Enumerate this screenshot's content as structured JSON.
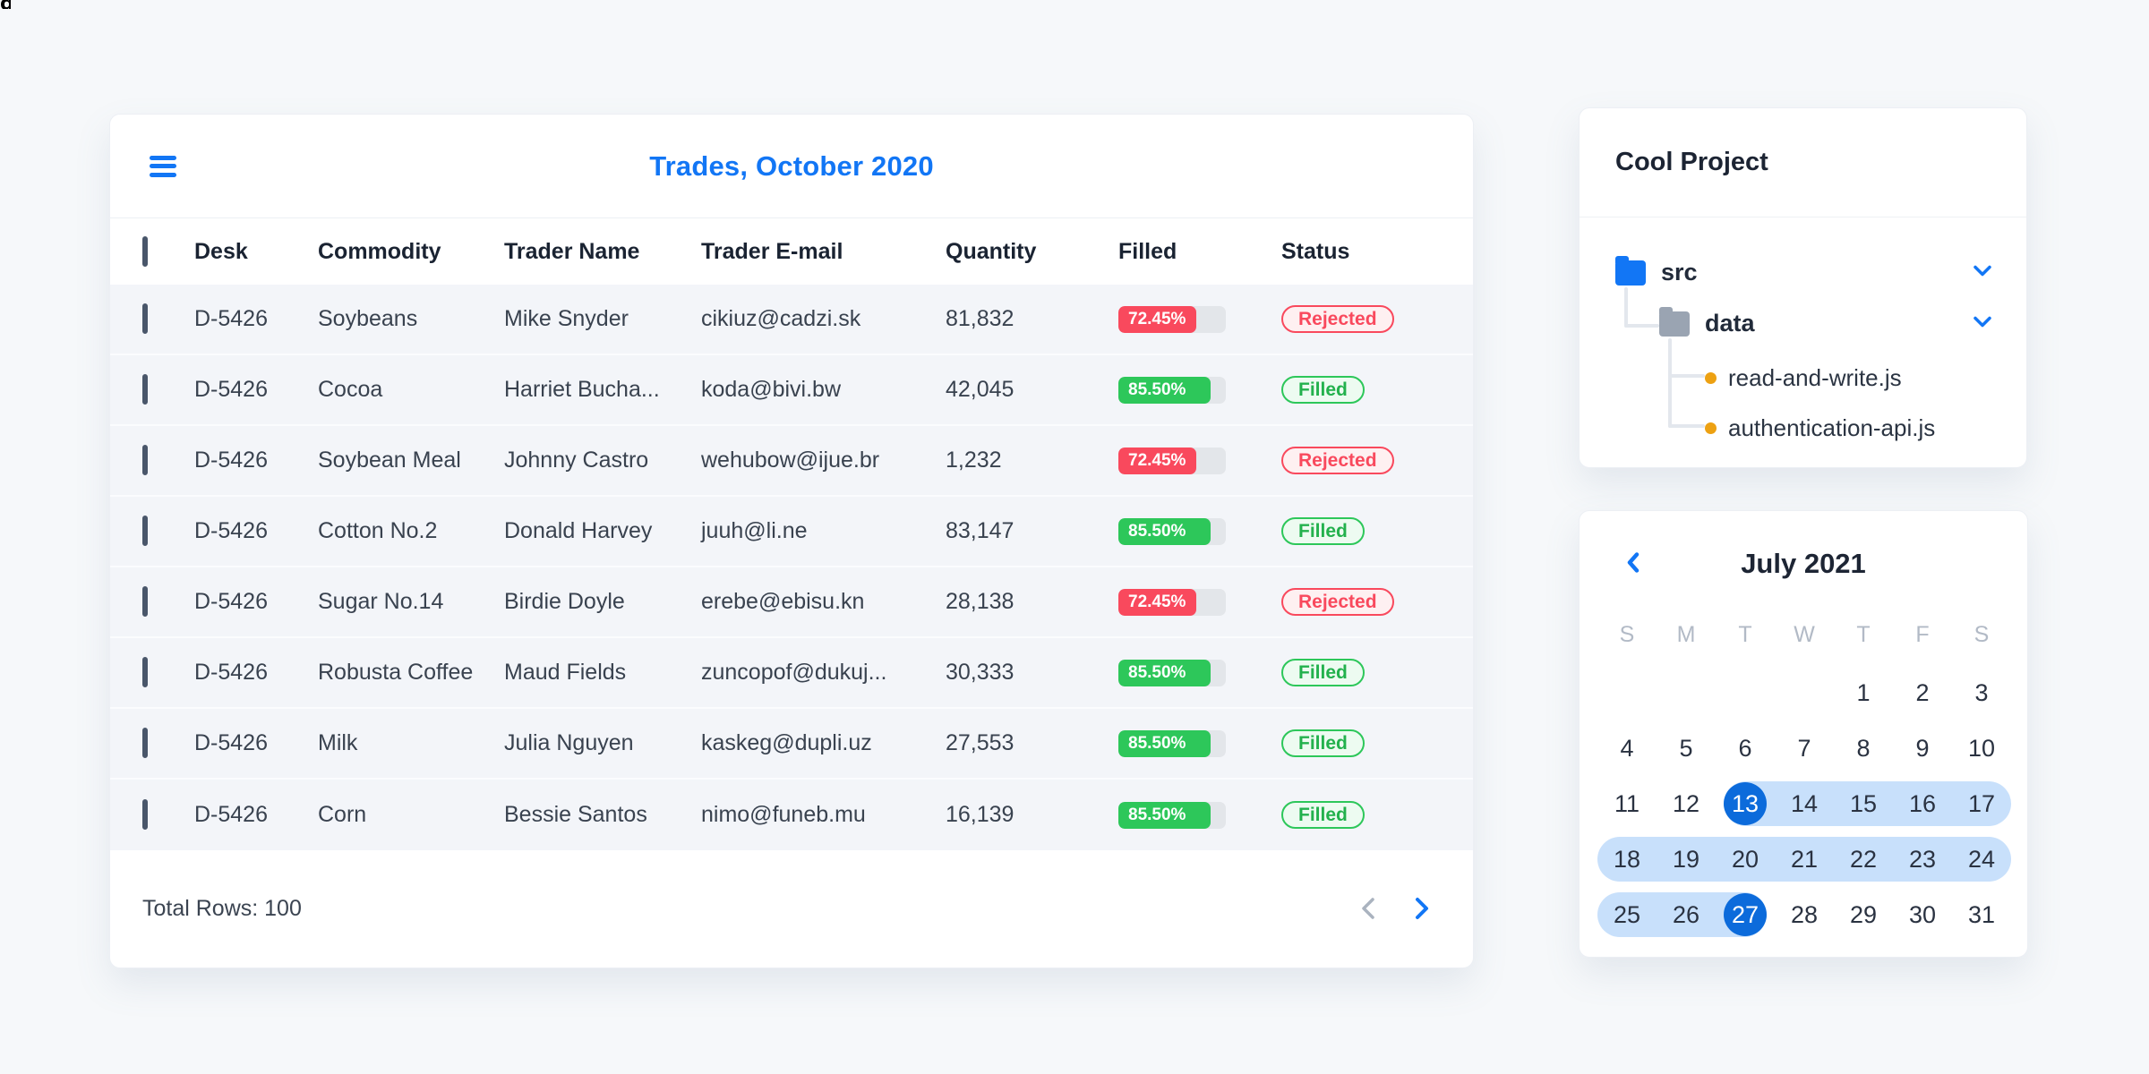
{
  "page": {
    "corner_glyph": "g"
  },
  "trades": {
    "title": "Trades, October 2020",
    "columns": [
      "Desk",
      "Commodity",
      "Trader Name",
      "Trader E-mail",
      "Quantity",
      "Filled",
      "Status"
    ],
    "rows": [
      {
        "desk": "D-5426",
        "commodity": "Soybeans",
        "trader": "Mike Snyder",
        "email": "cikiuz@cadzi.sk",
        "quantity": "81,832",
        "filled_label": "72.45%",
        "filled_pct": 72.45,
        "filled_variant": "danger",
        "status": "Rejected",
        "status_variant": "danger"
      },
      {
        "desk": "D-5426",
        "commodity": "Cocoa",
        "trader": "Harriet Bucha...",
        "email": "koda@bivi.bw",
        "quantity": "42,045",
        "filled_label": "85.50%",
        "filled_pct": 85.5,
        "filled_variant": "success",
        "status": "Filled",
        "status_variant": "success"
      },
      {
        "desk": "D-5426",
        "commodity": "Soybean Meal",
        "trader": "Johnny Castro",
        "email": "wehubow@ijue.br",
        "quantity": "1,232",
        "filled_label": "72.45%",
        "filled_pct": 72.45,
        "filled_variant": "danger",
        "status": "Rejected",
        "status_variant": "danger"
      },
      {
        "desk": "D-5426",
        "commodity": "Cotton No.2",
        "trader": "Donald Harvey",
        "email": "juuh@li.ne",
        "quantity": "83,147",
        "filled_label": "85.50%",
        "filled_pct": 85.5,
        "filled_variant": "success",
        "status": "Filled",
        "status_variant": "success"
      },
      {
        "desk": "D-5426",
        "commodity": "Sugar No.14",
        "trader": "Birdie Doyle",
        "email": "erebe@ebisu.kn",
        "quantity": "28,138",
        "filled_label": "72.45%",
        "filled_pct": 72.45,
        "filled_variant": "danger",
        "status": "Rejected",
        "status_variant": "danger"
      },
      {
        "desk": "D-5426",
        "commodity": "Robusta Coffee",
        "trader": "Maud Fields",
        "email": "zuncopof@dukuj...",
        "quantity": "30,333",
        "filled_label": "85.50%",
        "filled_pct": 85.5,
        "filled_variant": "success",
        "status": "Filled",
        "status_variant": "success"
      },
      {
        "desk": "D-5426",
        "commodity": "Milk",
        "trader": "Julia Nguyen",
        "email": "kaskeg@dupli.uz",
        "quantity": "27,553",
        "filled_label": "85.50%",
        "filled_pct": 85.5,
        "filled_variant": "success",
        "status": "Filled",
        "status_variant": "success"
      },
      {
        "desk": "D-5426",
        "commodity": "Corn",
        "trader": "Bessie Santos",
        "email": "nimo@funeb.mu",
        "quantity": "16,139",
        "filled_label": "85.50%",
        "filled_pct": 85.5,
        "filled_variant": "success",
        "status": "Filled",
        "status_variant": "success"
      }
    ],
    "footer": {
      "total_label": "Total Rows: 100"
    }
  },
  "project": {
    "title": "Cool Project",
    "tree": {
      "root_folder": "src",
      "child_folder": "data",
      "files": [
        "read-and-write.js",
        "authentication-api.js"
      ]
    }
  },
  "calendar": {
    "title": "July 2021",
    "day_headers": [
      "S",
      "M",
      "T",
      "W",
      "T",
      "F",
      "S"
    ],
    "weeks": [
      [
        null,
        null,
        null,
        null,
        1,
        2,
        3
      ],
      [
        4,
        5,
        6,
        7,
        8,
        9,
        10
      ],
      [
        11,
        12,
        13,
        14,
        15,
        16,
        17
      ],
      [
        18,
        19,
        20,
        21,
        22,
        23,
        24
      ],
      [
        25,
        26,
        27,
        28,
        29,
        30,
        31
      ]
    ],
    "range_start": 13,
    "range_end": 27,
    "selected_days": [
      13,
      27
    ]
  },
  "colors": {
    "accent_blue": "#1276f5",
    "selected_blue": "#0c6bdb",
    "range_blue": "#c8e0fb",
    "danger_red": "#f9495d",
    "success_green": "#2dc75a",
    "row_background": "#f3f5f9",
    "file_dot_orange": "#eda112",
    "folder_gray": "#9aa4b2"
  }
}
